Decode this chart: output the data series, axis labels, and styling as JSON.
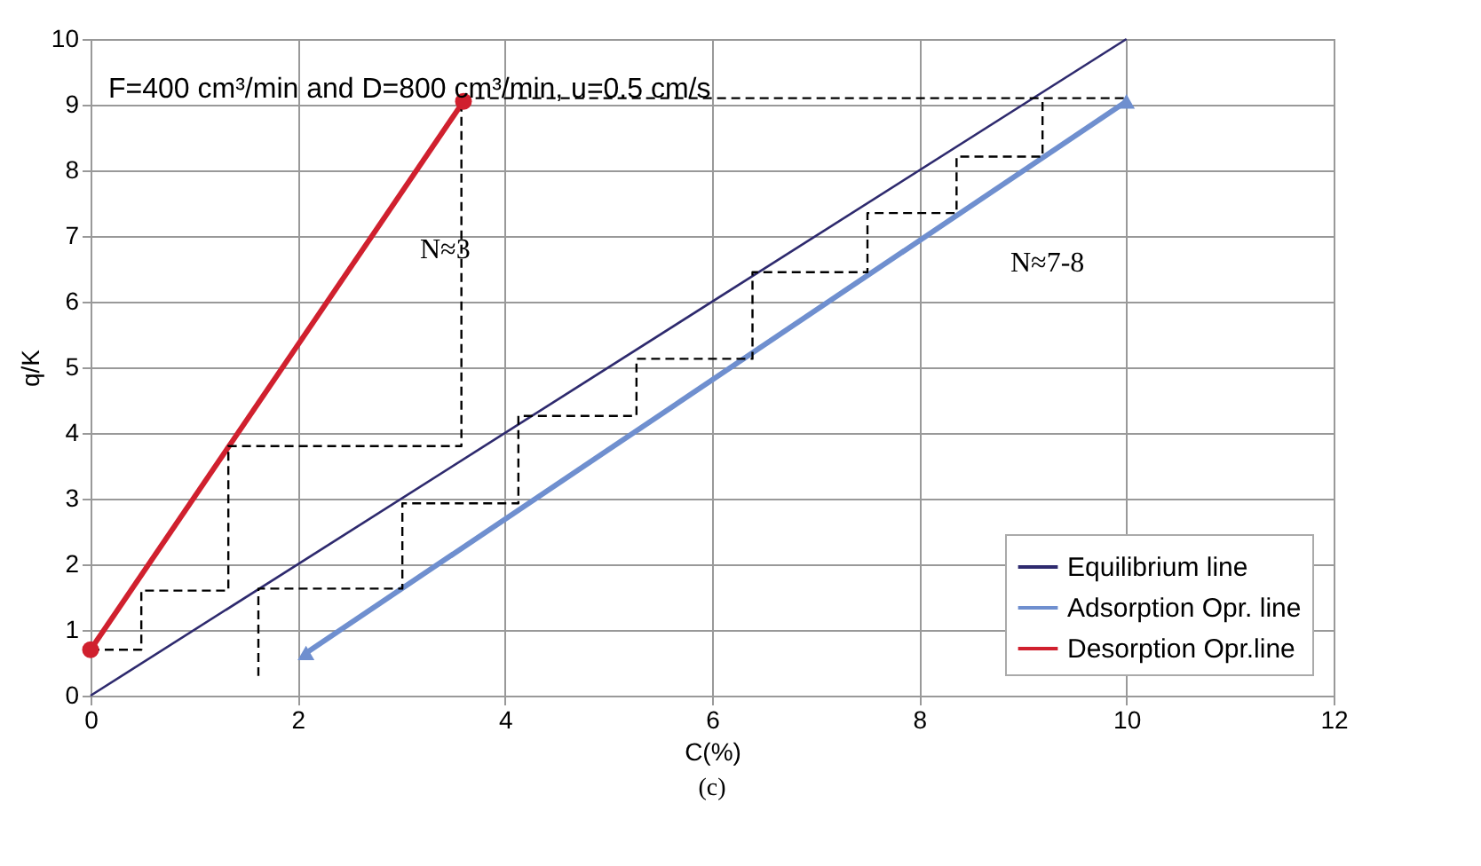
{
  "chart_data": {
    "type": "line",
    "xlabel": "C(%)",
    "ylabel": "q/K",
    "xlim": [
      0,
      12
    ],
    "xticks": [
      0,
      2,
      4,
      6,
      8,
      10,
      12
    ],
    "ylim": [
      0,
      10
    ],
    "yticks": [
      0,
      1,
      2,
      3,
      4,
      5,
      6,
      7,
      8,
      9,
      10
    ],
    "grid": true,
    "legend": "bottom right",
    "series": [
      {
        "name": "Equilibrium line",
        "color": "#2e2a6e",
        "x": [
          0,
          10
        ],
        "values": [
          0,
          10
        ],
        "marker": "none",
        "line_style": "solid"
      },
      {
        "name": "Adsorption Opr. line",
        "color": "#6f8fcf",
        "x": [
          2.08,
          10
        ],
        "values": [
          0.65,
          9.05
        ],
        "marker": "triangle",
        "line_style": "solid"
      },
      {
        "name": "Desorption Opr.line",
        "color": "#d0202e",
        "x": [
          0,
          3.6
        ],
        "values": [
          0.7,
          9.05
        ],
        "marker": "circle",
        "line_style": "solid"
      },
      {
        "color": "#000000",
        "x": [
          0,
          0.49,
          0.49,
          1.33,
          1.33,
          3.58,
          3.58
        ],
        "values": [
          0.7,
          0.7,
          1.6,
          1.6,
          3.8,
          3.8,
          9.1
        ],
        "marker": "none",
        "line_style": "dashed"
      },
      {
        "color": "#000000",
        "x": [
          3.58,
          10,
          9.19,
          9.19,
          8.36,
          8.36,
          7.5,
          7.5,
          6.39,
          6.39,
          5.27,
          5.27,
          4.13,
          4.13,
          3.01,
          3.01,
          1.62,
          1.62
        ],
        "values": [
          9.1,
          9.1,
          9.1,
          8.21,
          8.21,
          7.35,
          7.35,
          6.45,
          6.45,
          5.13,
          5.13,
          4.26,
          4.26,
          2.93,
          2.93,
          1.63,
          1.63,
          0.3
        ],
        "marker": "none",
        "line_style": "dashed"
      }
    ],
    "annotations": [
      "F=400 cm³/min and D=800 cm³/min, u=0.5 cm/s",
      "N≈3",
      "N≈7-8",
      "(c)"
    ]
  }
}
